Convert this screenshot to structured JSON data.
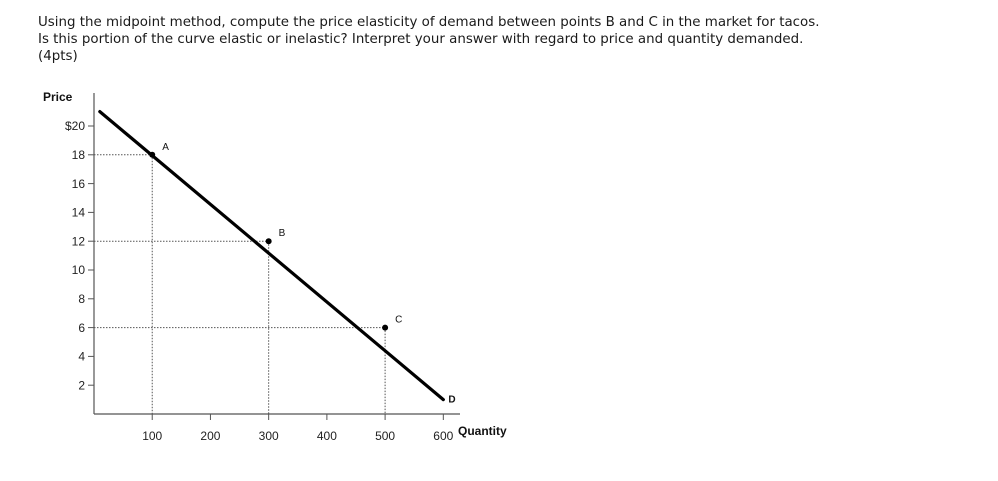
{
  "question": {
    "line1": "Using the midpoint method, compute the price elasticity of demand between points B and C in the market for tacos.",
    "line2": "Is this portion of the curve elastic or inelastic? Interpret your answer with regard to price and quantity demanded.",
    "line3": "(4pts)"
  },
  "chart_data": {
    "type": "line",
    "title": "",
    "xlabel": "Quantity",
    "ylabel": "Price",
    "xlim": [
      0,
      600
    ],
    "ylim": [
      0,
      20
    ],
    "x_ticks": [
      {
        "value": 100,
        "label": "100"
      },
      {
        "value": 200,
        "label": "200"
      },
      {
        "value": 300,
        "label": "300"
      },
      {
        "value": 400,
        "label": "400"
      },
      {
        "value": 500,
        "label": "500"
      },
      {
        "value": 600,
        "label": "600"
      }
    ],
    "y_ticks": [
      {
        "value": 2,
        "label": "2"
      },
      {
        "value": 4,
        "label": "4"
      },
      {
        "value": 6,
        "label": "6"
      },
      {
        "value": 8,
        "label": "8"
      },
      {
        "value": 10,
        "label": "10"
      },
      {
        "value": 12,
        "label": "12"
      },
      {
        "value": 14,
        "label": "14"
      },
      {
        "value": 16,
        "label": "16"
      },
      {
        "value": 18,
        "label": "18"
      },
      {
        "value": 20,
        "label": "$20"
      }
    ],
    "curve": {
      "name": "D",
      "points": [
        [
          10,
          21
        ],
        [
          600,
          1
        ]
      ]
    },
    "labeled_points": [
      {
        "label": "A",
        "x": 100,
        "y": 18
      },
      {
        "label": "B",
        "x": 300,
        "y": 12
      },
      {
        "label": "C",
        "x": 500,
        "y": 6
      }
    ],
    "colors": {
      "curve": "#000000",
      "axis": "#555555",
      "guides": "#555555"
    },
    "grid": false
  }
}
